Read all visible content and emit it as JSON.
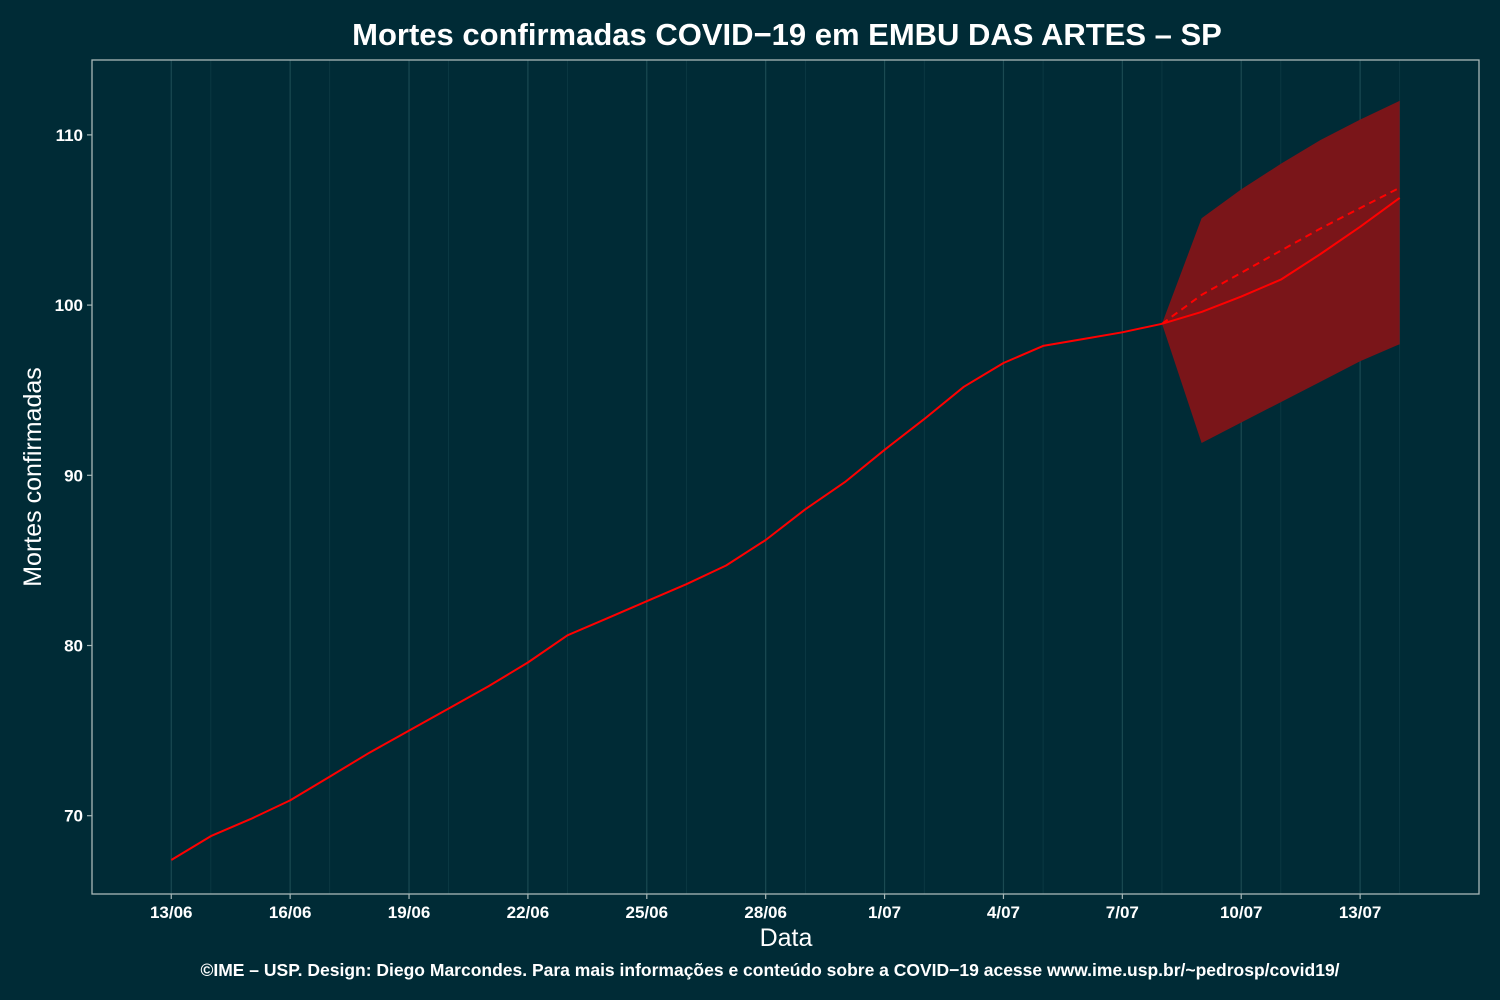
{
  "chart_data": {
    "type": "line",
    "title": "Mortes confirmadas COVID−19 em EMBU DAS ARTES – SP",
    "xlabel": "Data",
    "ylabel": "Mortes confirmadas",
    "caption": "©IME – USP. Design: Diego Marcondes. Para mais informações e conteúdo sobre a COVID−19 acesse www.ime.usp.br/~pedrosp/covid19/",
    "x_ticks": [
      "13/06",
      "16/06",
      "19/06",
      "22/06",
      "25/06",
      "28/06",
      "1/07",
      "4/07",
      "7/07",
      "10/07",
      "13/07"
    ],
    "y_ticks": [
      70,
      80,
      90,
      100,
      110
    ],
    "ylim": [
      65.4,
      114.4
    ],
    "xlim": [
      "2020-06-11",
      "2020-07-16"
    ],
    "grid": true,
    "colors": {
      "background": "#002b36",
      "line": "#ff0000",
      "band": "#7a1519",
      "grid": "#1a4a52",
      "axis": "#a8b8b8"
    },
    "series": [
      {
        "role": "observed",
        "style": "solid",
        "x": [
          "2020-06-13",
          "2020-06-14",
          "2020-06-15",
          "2020-06-16",
          "2020-06-17",
          "2020-06-18",
          "2020-06-19",
          "2020-06-20",
          "2020-06-21",
          "2020-06-22",
          "2020-06-23",
          "2020-06-24",
          "2020-06-25",
          "2020-06-26",
          "2020-06-27",
          "2020-06-28",
          "2020-06-29",
          "2020-06-30",
          "2020-07-01",
          "2020-07-02",
          "2020-07-03",
          "2020-07-04",
          "2020-07-05",
          "2020-07-06",
          "2020-07-07",
          "2020-07-08"
        ],
        "values": [
          67.4,
          68.8,
          69.8,
          70.9,
          72.3,
          73.7,
          75.0,
          76.3,
          77.6,
          79.0,
          80.6,
          81.6,
          82.6,
          83.6,
          84.7,
          86.2,
          88.0,
          89.6,
          91.5,
          93.3,
          95.2,
          96.6,
          97.6,
          98.0,
          98.4,
          98.9
        ]
      },
      {
        "role": "forecast",
        "style": "solid",
        "x": [
          "2020-07-08",
          "2020-07-09",
          "2020-07-10",
          "2020-07-11",
          "2020-07-12",
          "2020-07-13",
          "2020-07-14"
        ],
        "values": [
          98.9,
          99.6,
          100.5,
          101.5,
          103.0,
          104.6,
          106.3
        ]
      },
      {
        "role": "forecast-mean",
        "style": "dashed",
        "x": [
          "2020-07-08",
          "2020-07-09",
          "2020-07-10",
          "2020-07-11",
          "2020-07-12",
          "2020-07-13",
          "2020-07-14"
        ],
        "values": [
          98.9,
          100.6,
          101.9,
          103.2,
          104.5,
          105.7,
          106.9
        ]
      }
    ],
    "band": {
      "role": "prediction-interval",
      "x": [
        "2020-07-08",
        "2020-07-09",
        "2020-07-10",
        "2020-07-11",
        "2020-07-12",
        "2020-07-13",
        "2020-07-14"
      ],
      "lower": [
        98.9,
        91.9,
        93.1,
        94.3,
        95.5,
        96.7,
        97.7
      ],
      "upper": [
        98.9,
        105.1,
        106.8,
        108.3,
        109.7,
        110.9,
        112.0
      ]
    }
  }
}
